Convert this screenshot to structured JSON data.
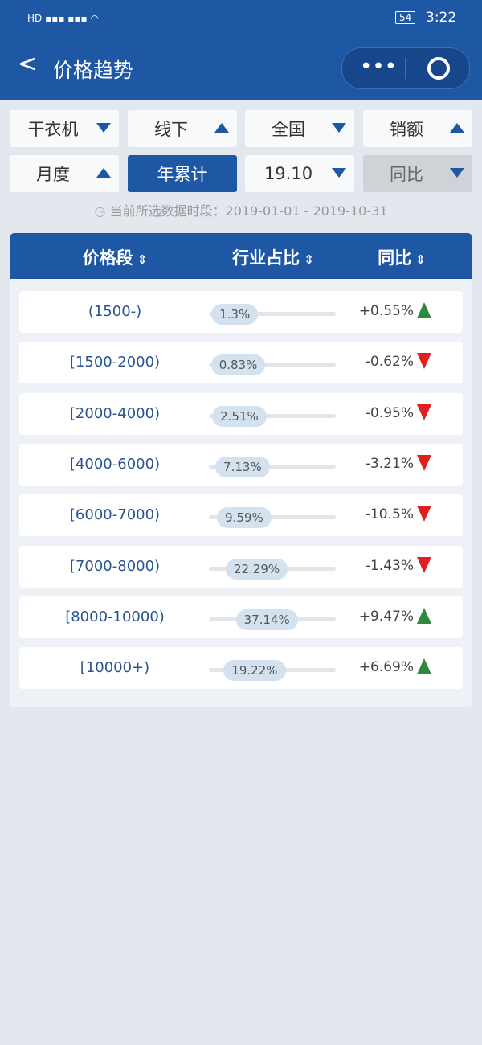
{
  "status_bar": {
    "battery": "54",
    "time": "3:22"
  },
  "header": {
    "title": "价格趋势"
  },
  "filters": [
    [
      "干衣机",
      "线下",
      "全国",
      "销额"
    ],
    [
      "月度",
      "年累计",
      "19.10",
      "同比"
    ]
  ],
  "period": "当前所选数据时段：2019-01-01 - 2019-10-31",
  "table": {
    "columns": [
      "价格段",
      "行业占比",
      "同比"
    ],
    "rows": [
      [
        "(1500-)",
        "1.3%",
        "+0.55%"
      ],
      [
        "[1500-2000)",
        "0.83%",
        "-0.62%"
      ],
      [
        "[2000-4000)",
        "2.51%",
        "-0.95%"
      ],
      [
        "[4000-6000)",
        "7.13%",
        "-3.21%"
      ],
      [
        "[6000-7000)",
        "9.59%",
        "-10.5%"
      ],
      [
        "[7000-8000)",
        "22.29%",
        "-1.43%"
      ],
      [
        "[8000-10000)",
        "37.14%",
        "+9.47%"
      ],
      [
        "[10000+)",
        "19.22%",
        "+6.69%"
      ]
    ]
  }
}
